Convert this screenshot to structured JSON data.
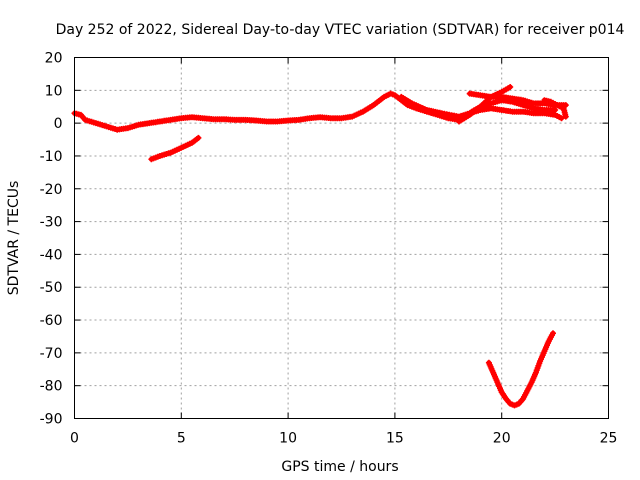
{
  "chart_data": {
    "type": "scatter",
    "title": "Day 252 of 2022, Sidereal Day-to-day VTEC variation (SDTVAR) for receiver p014",
    "xlabel": "GPS time / hours",
    "ylabel": "SDTVAR / TECUs",
    "xlim": [
      0,
      25
    ],
    "ylim": [
      -90,
      20
    ],
    "grid": true,
    "xticks": [
      0,
      5,
      10,
      15,
      20,
      25
    ],
    "yticks": [
      20,
      10,
      0,
      -10,
      -20,
      -30,
      -40,
      -50,
      -60,
      -70,
      -80,
      -90
    ],
    "marker_color": "#ff0000",
    "series": [
      {
        "name": "segment-1",
        "points": [
          [
            0.0,
            3.0
          ],
          [
            0.3,
            2.5
          ],
          [
            0.5,
            1.0
          ],
          [
            1.0,
            0.0
          ],
          [
            1.5,
            -1.0
          ],
          [
            2.0,
            -2.0
          ],
          [
            2.5,
            -1.5
          ],
          [
            3.0,
            -0.5
          ],
          [
            3.5,
            0.0
          ],
          [
            4.0,
            0.5
          ],
          [
            4.5,
            1.0
          ],
          [
            5.0,
            1.5
          ],
          [
            5.5,
            1.8
          ],
          [
            6.0,
            1.5
          ],
          [
            6.5,
            1.2
          ],
          [
            7.0,
            1.2
          ],
          [
            7.5,
            1.0
          ],
          [
            8.0,
            1.0
          ],
          [
            8.5,
            0.8
          ],
          [
            9.0,
            0.5
          ],
          [
            9.5,
            0.5
          ],
          [
            10.0,
            0.8
          ],
          [
            10.5,
            1.0
          ],
          [
            11.0,
            1.5
          ],
          [
            11.5,
            1.8
          ],
          [
            12.0,
            1.5
          ],
          [
            12.5,
            1.5
          ],
          [
            13.0,
            2.0
          ],
          [
            13.5,
            3.5
          ],
          [
            14.0,
            5.5
          ],
          [
            14.5,
            8.0
          ],
          [
            14.8,
            9.0
          ],
          [
            15.0,
            8.5
          ],
          [
            15.3,
            7.0
          ],
          [
            15.6,
            5.5
          ],
          [
            16.0,
            4.5
          ],
          [
            16.5,
            3.5
          ],
          [
            17.0,
            2.5
          ],
          [
            17.5,
            1.5
          ],
          [
            18.0,
            1.0
          ],
          [
            18.3,
            2.0
          ],
          [
            18.6,
            3.5
          ],
          [
            19.0,
            5.0
          ],
          [
            19.5,
            6.0
          ],
          [
            20.0,
            7.0
          ],
          [
            20.5,
            6.5
          ],
          [
            21.0,
            5.5
          ],
          [
            21.5,
            4.5
          ],
          [
            22.0,
            4.0
          ],
          [
            22.5,
            4.0
          ]
        ]
      },
      {
        "name": "segment-2",
        "points": [
          [
            15.3,
            8.0
          ],
          [
            15.8,
            6.0
          ],
          [
            16.5,
            4.0
          ],
          [
            17.2,
            3.0
          ],
          [
            18.0,
            2.0
          ],
          [
            18.5,
            3.0
          ],
          [
            19.0,
            4.0
          ],
          [
            19.5,
            4.5
          ],
          [
            20.0,
            4.0
          ],
          [
            20.5,
            3.5
          ],
          [
            21.0,
            3.5
          ],
          [
            21.5,
            3.0
          ],
          [
            22.0,
            3.0
          ],
          [
            22.5,
            2.5
          ],
          [
            22.8,
            1.5
          ]
        ]
      },
      {
        "name": "segment-3",
        "points": [
          [
            3.6,
            -11.0
          ],
          [
            4.0,
            -10.0
          ],
          [
            4.5,
            -9.0
          ],
          [
            5.0,
            -7.5
          ],
          [
            5.5,
            -6.0
          ],
          [
            5.8,
            -4.5
          ]
        ]
      },
      {
        "name": "segment-4",
        "points": [
          [
            18.0,
            0.5
          ],
          [
            18.5,
            2.5
          ],
          [
            19.0,
            5.0
          ],
          [
            19.5,
            8.0
          ],
          [
            20.0,
            9.5
          ],
          [
            20.4,
            11.0
          ]
        ]
      },
      {
        "name": "segment-5",
        "points": [
          [
            18.5,
            9.0
          ],
          [
            19.0,
            8.5
          ],
          [
            19.5,
            8.0
          ],
          [
            20.0,
            8.0
          ],
          [
            20.5,
            7.5
          ],
          [
            21.0,
            7.0
          ],
          [
            21.5,
            6.0
          ],
          [
            22.0,
            6.0
          ],
          [
            22.5,
            5.5
          ],
          [
            23.0,
            5.5
          ]
        ]
      },
      {
        "name": "segment-6",
        "points": [
          [
            22.0,
            7.0
          ],
          [
            22.3,
            6.5
          ],
          [
            22.6,
            5.5
          ],
          [
            22.9,
            4.5
          ],
          [
            23.0,
            2.0
          ]
        ]
      },
      {
        "name": "segment-7",
        "points": [
          [
            19.4,
            -73.0
          ],
          [
            19.6,
            -76.0
          ],
          [
            19.8,
            -79.0
          ],
          [
            20.0,
            -82.0
          ],
          [
            20.2,
            -84.0
          ],
          [
            20.4,
            -85.5
          ],
          [
            20.6,
            -86.0
          ],
          [
            20.8,
            -85.5
          ],
          [
            21.0,
            -84.0
          ],
          [
            21.2,
            -81.5
          ],
          [
            21.4,
            -79.0
          ],
          [
            21.6,
            -76.0
          ],
          [
            21.8,
            -72.5
          ],
          [
            22.0,
            -69.5
          ],
          [
            22.2,
            -66.5
          ],
          [
            22.4,
            -64.0
          ]
        ]
      }
    ]
  }
}
